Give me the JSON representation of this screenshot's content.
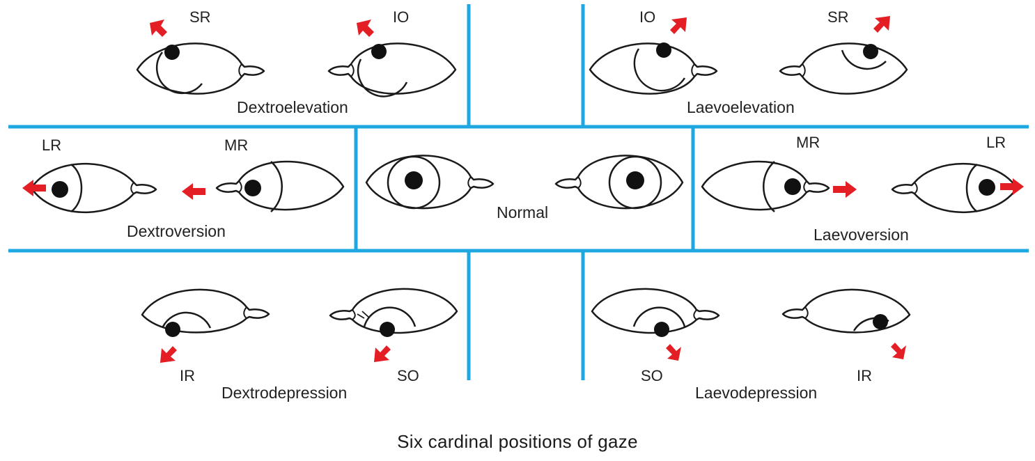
{
  "colors": {
    "divider": "#1ea7e0",
    "arrow": "#e31e24",
    "outline": "#1a1a1a"
  },
  "caption": "Six cardinal positions of gaze",
  "panels": {
    "dextroelevation": {
      "title": "Dextroelevation",
      "muscles": [
        "SR",
        "IO"
      ]
    },
    "laevoelevation": {
      "title": "Laevoelevation",
      "muscles": [
        "IO",
        "SR"
      ]
    },
    "dextroversion": {
      "title": "Dextroversion",
      "muscles": [
        "LR",
        "MR"
      ]
    },
    "normal": {
      "title": "Normal"
    },
    "laevoversion": {
      "title": "Laevoversion",
      "muscles": [
        "MR",
        "LR"
      ]
    },
    "dextrodepression": {
      "title": "Dextrodepression",
      "muscles": [
        "IR",
        "SO"
      ]
    },
    "laevodepression": {
      "title": "Laevodepression",
      "muscles": [
        "SO",
        "IR"
      ]
    }
  }
}
